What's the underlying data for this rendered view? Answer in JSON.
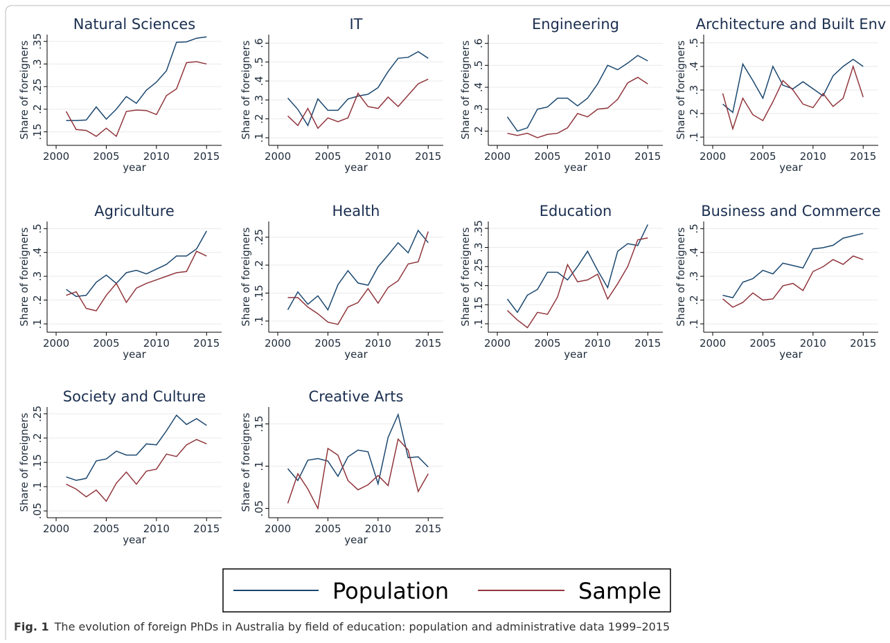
{
  "chart_data": [
    {
      "type": "line",
      "title": "Natural Sciences",
      "xlabel": "year",
      "ylabel": "Share of foreigners",
      "x": [
        2001,
        2002,
        2003,
        2004,
        2005,
        2006,
        2007,
        2008,
        2009,
        2010,
        2011,
        2012,
        2013,
        2014,
        2015
      ],
      "series": [
        {
          "name": "Population",
          "color": "#1a476f",
          "values": [
            0.175,
            0.175,
            0.176,
            0.205,
            0.178,
            0.2,
            0.228,
            0.213,
            0.242,
            0.26,
            0.285,
            0.348,
            0.349,
            0.357,
            0.36
          ]
        },
        {
          "name": "Sample",
          "color": "#90353b",
          "values": [
            0.195,
            0.155,
            0.153,
            0.14,
            0.158,
            0.14,
            0.195,
            0.198,
            0.197,
            0.188,
            0.23,
            0.245,
            0.303,
            0.305,
            0.3
          ]
        }
      ],
      "xlim": [
        1999.1,
        2016.5
      ],
      "xticks": [
        2000,
        2005,
        2010,
        2015
      ],
      "ylim": [
        0.12,
        0.365
      ],
      "yticks": [
        {
          "value": 0.15,
          "label": ".15"
        },
        {
          "value": 0.2,
          "label": ".2"
        },
        {
          "value": 0.25,
          "label": ".25"
        },
        {
          "value": 0.3,
          "label": ".3"
        },
        {
          "value": 0.35,
          "label": ".35"
        }
      ],
      "grid": true
    },
    {
      "type": "line",
      "title": "IT",
      "xlabel": "year",
      "ylabel": "Share of foreigners",
      "x": [
        2001,
        2002,
        2003,
        2004,
        2005,
        2006,
        2007,
        2008,
        2009,
        2010,
        2011,
        2012,
        2013,
        2014,
        2015
      ],
      "series": [
        {
          "name": "Population",
          "color": "#1a476f",
          "values": [
            0.31,
            0.25,
            0.165,
            0.305,
            0.245,
            0.245,
            0.305,
            0.32,
            0.33,
            0.365,
            0.45,
            0.52,
            0.525,
            0.555,
            0.52
          ]
        },
        {
          "name": "Sample",
          "color": "#90353b",
          "values": [
            0.215,
            0.165,
            0.255,
            0.15,
            0.205,
            0.185,
            0.205,
            0.335,
            0.265,
            0.255,
            0.315,
            0.265,
            0.325,
            0.385,
            0.41
          ]
        }
      ],
      "xlim": [
        1999.1,
        2016.5
      ],
      "xticks": [
        2000,
        2005,
        2010,
        2015
      ],
      "ylim": [
        0.06,
        0.645
      ],
      "yticks": [
        {
          "value": 0.1,
          "label": ".1"
        },
        {
          "value": 0.2,
          "label": ".2"
        },
        {
          "value": 0.3,
          "label": ".3"
        },
        {
          "value": 0.4,
          "label": ".4"
        },
        {
          "value": 0.5,
          "label": ".5"
        },
        {
          "value": 0.6,
          "label": ".6"
        }
      ],
      "grid": true
    },
    {
      "type": "line",
      "title": "Engineering",
      "xlabel": "year",
      "ylabel": "Share of foreigners",
      "x": [
        2001,
        2002,
        2003,
        2004,
        2005,
        2006,
        2007,
        2008,
        2009,
        2010,
        2011,
        2012,
        2013,
        2014,
        2015
      ],
      "series": [
        {
          "name": "Population",
          "color": "#1a476f",
          "values": [
            0.265,
            0.2,
            0.215,
            0.3,
            0.31,
            0.35,
            0.35,
            0.315,
            0.35,
            0.415,
            0.5,
            0.48,
            0.51,
            0.545,
            0.52
          ]
        },
        {
          "name": "Sample",
          "color": "#90353b",
          "values": [
            0.19,
            0.18,
            0.19,
            0.17,
            0.185,
            0.19,
            0.215,
            0.28,
            0.265,
            0.3,
            0.305,
            0.345,
            0.42,
            0.445,
            0.415
          ]
        }
      ],
      "xlim": [
        1999.1,
        2016.5
      ],
      "xticks": [
        2000,
        2005,
        2010,
        2015
      ],
      "ylim": [
        0.135,
        0.64
      ],
      "yticks": [
        {
          "value": 0.2,
          "label": ".2"
        },
        {
          "value": 0.3,
          "label": ".3"
        },
        {
          "value": 0.4,
          "label": ".4"
        },
        {
          "value": 0.5,
          "label": ".5"
        },
        {
          "value": 0.6,
          "label": ".6"
        }
      ],
      "grid": true
    },
    {
      "type": "line",
      "title": "Architecture and Built Env",
      "xlabel": "year",
      "ylabel": "Share of foreigners",
      "x": [
        2001,
        2002,
        2003,
        2004,
        2005,
        2006,
        2007,
        2008,
        2009,
        2010,
        2011,
        2012,
        2013,
        2014,
        2015
      ],
      "series": [
        {
          "name": "Population",
          "color": "#1a476f",
          "values": [
            0.24,
            0.205,
            0.41,
            0.34,
            0.265,
            0.4,
            0.32,
            0.305,
            0.335,
            0.305,
            0.275,
            0.36,
            0.4,
            0.43,
            0.4
          ]
        },
        {
          "name": "Sample",
          "color": "#90353b",
          "values": [
            0.285,
            0.135,
            0.265,
            0.195,
            0.17,
            0.25,
            0.34,
            0.3,
            0.24,
            0.225,
            0.285,
            0.23,
            0.265,
            0.4,
            0.27
          ]
        }
      ],
      "xlim": [
        1999.1,
        2016.5
      ],
      "xticks": [
        2000,
        2005,
        2010,
        2015
      ],
      "ylim": [
        0.065,
        0.535
      ],
      "yticks": [
        {
          "value": 0.1,
          "label": ".1"
        },
        {
          "value": 0.2,
          "label": ".2"
        },
        {
          "value": 0.3,
          "label": ".3"
        },
        {
          "value": 0.4,
          "label": ".4"
        },
        {
          "value": 0.5,
          "label": ".5"
        }
      ],
      "grid": true
    },
    {
      "type": "line",
      "title": "Agriculture",
      "xlabel": "year",
      "ylabel": "Share of foreigners",
      "x": [
        2001,
        2002,
        2003,
        2004,
        2005,
        2006,
        2007,
        2008,
        2009,
        2010,
        2011,
        2012,
        2013,
        2014,
        2015
      ],
      "series": [
        {
          "name": "Population",
          "color": "#1a476f",
          "values": [
            0.245,
            0.215,
            0.22,
            0.275,
            0.305,
            0.27,
            0.315,
            0.325,
            0.31,
            0.33,
            0.35,
            0.385,
            0.385,
            0.415,
            0.49
          ]
        },
        {
          "name": "Sample",
          "color": "#90353b",
          "values": [
            0.22,
            0.235,
            0.165,
            0.155,
            0.22,
            0.27,
            0.19,
            0.25,
            0.27,
            0.285,
            0.3,
            0.315,
            0.32,
            0.405,
            0.385
          ]
        }
      ],
      "xlim": [
        1999.1,
        2016.5
      ],
      "xticks": [
        2000,
        2005,
        2010,
        2015
      ],
      "ylim": [
        0.065,
        0.53
      ],
      "yticks": [
        {
          "value": 0.1,
          "label": ".1"
        },
        {
          "value": 0.2,
          "label": ".2"
        },
        {
          "value": 0.3,
          "label": ".3"
        },
        {
          "value": 0.4,
          "label": ".4"
        },
        {
          "value": 0.5,
          "label": ".5"
        }
      ],
      "grid": true
    },
    {
      "type": "line",
      "title": "Health",
      "xlabel": "year",
      "ylabel": "Share of foreigners",
      "x": [
        2001,
        2002,
        2003,
        2004,
        2005,
        2006,
        2007,
        2008,
        2009,
        2010,
        2011,
        2012,
        2013,
        2014,
        2015
      ],
      "series": [
        {
          "name": "Population",
          "color": "#1a476f",
          "values": [
            0.12,
            0.152,
            0.13,
            0.145,
            0.12,
            0.165,
            0.19,
            0.168,
            0.164,
            0.197,
            0.218,
            0.24,
            0.222,
            0.262,
            0.24
          ]
        },
        {
          "name": "Sample",
          "color": "#90353b",
          "values": [
            0.142,
            0.142,
            0.125,
            0.113,
            0.098,
            0.094,
            0.125,
            0.133,
            0.158,
            0.132,
            0.16,
            0.172,
            0.202,
            0.206,
            0.26
          ]
        }
      ],
      "xlim": [
        1999.1,
        2016.5
      ],
      "xticks": [
        2000,
        2005,
        2010,
        2015
      ],
      "ylim": [
        0.08,
        0.278
      ],
      "yticks": [
        {
          "value": 0.1,
          "label": ".1"
        },
        {
          "value": 0.15,
          "label": ".15"
        },
        {
          "value": 0.2,
          "label": ".2"
        },
        {
          "value": 0.25,
          "label": ".25"
        }
      ],
      "grid": true
    },
    {
      "type": "line",
      "title": "Education",
      "xlabel": "year",
      "ylabel": "Share of foreigners",
      "x": [
        2001,
        2002,
        2003,
        2004,
        2005,
        2006,
        2007,
        2008,
        2009,
        2010,
        2011,
        2012,
        2013,
        2014,
        2015
      ],
      "series": [
        {
          "name": "Population",
          "color": "#1a476f",
          "values": [
            0.165,
            0.13,
            0.175,
            0.19,
            0.235,
            0.235,
            0.215,
            0.25,
            0.29,
            0.24,
            0.195,
            0.29,
            0.31,
            0.305,
            0.36
          ]
        },
        {
          "name": "Sample",
          "color": "#90353b",
          "values": [
            0.135,
            0.11,
            0.09,
            0.13,
            0.125,
            0.17,
            0.255,
            0.21,
            0.215,
            0.23,
            0.165,
            0.205,
            0.25,
            0.32,
            0.325
          ]
        }
      ],
      "xlim": [
        1999.1,
        2016.5
      ],
      "xticks": [
        2000,
        2005,
        2010,
        2015
      ],
      "ylim": [
        0.078,
        0.368
      ],
      "yticks": [
        {
          "value": 0.1,
          "label": ".1"
        },
        {
          "value": 0.15,
          "label": ".15"
        },
        {
          "value": 0.2,
          "label": ".2"
        },
        {
          "value": 0.25,
          "label": ".25"
        },
        {
          "value": 0.3,
          "label": ".3"
        },
        {
          "value": 0.35,
          "label": ".35"
        }
      ],
      "grid": true
    },
    {
      "type": "line",
      "title": "Business and Commerce",
      "xlabel": "year",
      "ylabel": "Share of foreigners",
      "x": [
        2001,
        2002,
        2003,
        2004,
        2005,
        2006,
        2007,
        2008,
        2009,
        2010,
        2011,
        2012,
        2013,
        2014,
        2015
      ],
      "series": [
        {
          "name": "Population",
          "color": "#1a476f",
          "values": [
            0.22,
            0.21,
            0.275,
            0.29,
            0.325,
            0.31,
            0.355,
            0.345,
            0.335,
            0.415,
            0.42,
            0.43,
            0.46,
            0.47,
            0.48
          ]
        },
        {
          "name": "Sample",
          "color": "#90353b",
          "values": [
            0.205,
            0.17,
            0.19,
            0.23,
            0.2,
            0.205,
            0.26,
            0.27,
            0.24,
            0.32,
            0.34,
            0.37,
            0.35,
            0.385,
            0.37
          ]
        }
      ],
      "xlim": [
        1999.1,
        2016.5
      ],
      "xticks": [
        2000,
        2005,
        2010,
        2015
      ],
      "ylim": [
        0.065,
        0.53
      ],
      "yticks": [
        {
          "value": 0.1,
          "label": ".1"
        },
        {
          "value": 0.2,
          "label": ".2"
        },
        {
          "value": 0.3,
          "label": ".3"
        },
        {
          "value": 0.4,
          "label": ".4"
        },
        {
          "value": 0.5,
          "label": ".5"
        }
      ],
      "grid": true
    },
    {
      "type": "line",
      "title": "Society and Culture",
      "xlabel": "year",
      "ylabel": "Share of foreigners",
      "x": [
        2001,
        2002,
        2003,
        2004,
        2005,
        2006,
        2007,
        2008,
        2009,
        2010,
        2011,
        2012,
        2013,
        2014,
        2015
      ],
      "series": [
        {
          "name": "Population",
          "color": "#1a476f",
          "values": [
            0.12,
            0.113,
            0.117,
            0.153,
            0.157,
            0.173,
            0.165,
            0.165,
            0.188,
            0.186,
            0.215,
            0.247,
            0.228,
            0.24,
            0.226
          ]
        },
        {
          "name": "Sample",
          "color": "#90353b",
          "values": [
            0.105,
            0.095,
            0.079,
            0.093,
            0.07,
            0.107,
            0.13,
            0.105,
            0.132,
            0.136,
            0.167,
            0.162,
            0.186,
            0.197,
            0.188
          ]
        }
      ],
      "xlim": [
        1999.1,
        2016.5
      ],
      "xticks": [
        2000,
        2005,
        2010,
        2015
      ],
      "ylim": [
        0.036,
        0.264
      ],
      "yticks": [
        {
          "value": 0.05,
          "label": ".05"
        },
        {
          "value": 0.1,
          "label": ".1"
        },
        {
          "value": 0.15,
          "label": ".15"
        },
        {
          "value": 0.2,
          "label": ".2"
        },
        {
          "value": 0.25,
          "label": ".25"
        }
      ],
      "grid": true
    },
    {
      "type": "line",
      "title": "Creative Arts",
      "xlabel": "year",
      "ylabel": "Share of foreigners",
      "x": [
        2001,
        2002,
        2003,
        2004,
        2005,
        2006,
        2007,
        2008,
        2009,
        2010,
        2011,
        2012,
        2013,
        2014,
        2015
      ],
      "series": [
        {
          "name": "Population",
          "color": "#1a476f",
          "values": [
            0.097,
            0.083,
            0.107,
            0.109,
            0.106,
            0.088,
            0.111,
            0.119,
            0.117,
            0.079,
            0.134,
            0.161,
            0.11,
            0.111,
            0.099
          ]
        },
        {
          "name": "Sample",
          "color": "#90353b",
          "values": [
            0.056,
            0.091,
            0.073,
            0.05,
            0.121,
            0.113,
            0.083,
            0.072,
            0.078,
            0.089,
            0.077,
            0.132,
            0.119,
            0.07,
            0.091
          ]
        }
      ],
      "xlim": [
        1999.1,
        2016.5
      ],
      "xticks": [
        2000,
        2005,
        2010,
        2015
      ],
      "ylim": [
        0.039,
        0.17
      ],
      "yticks": [
        {
          "value": 0.05,
          "label": ".05"
        },
        {
          "value": 0.1,
          "label": ".1"
        },
        {
          "value": 0.15,
          "label": ".15"
        }
      ],
      "grid": true
    }
  ],
  "caption": {
    "label": "Fig. 1",
    "text": "The evolution of foreign PhDs in Australia by field of education: population and administrative data 1999–2015"
  }
}
